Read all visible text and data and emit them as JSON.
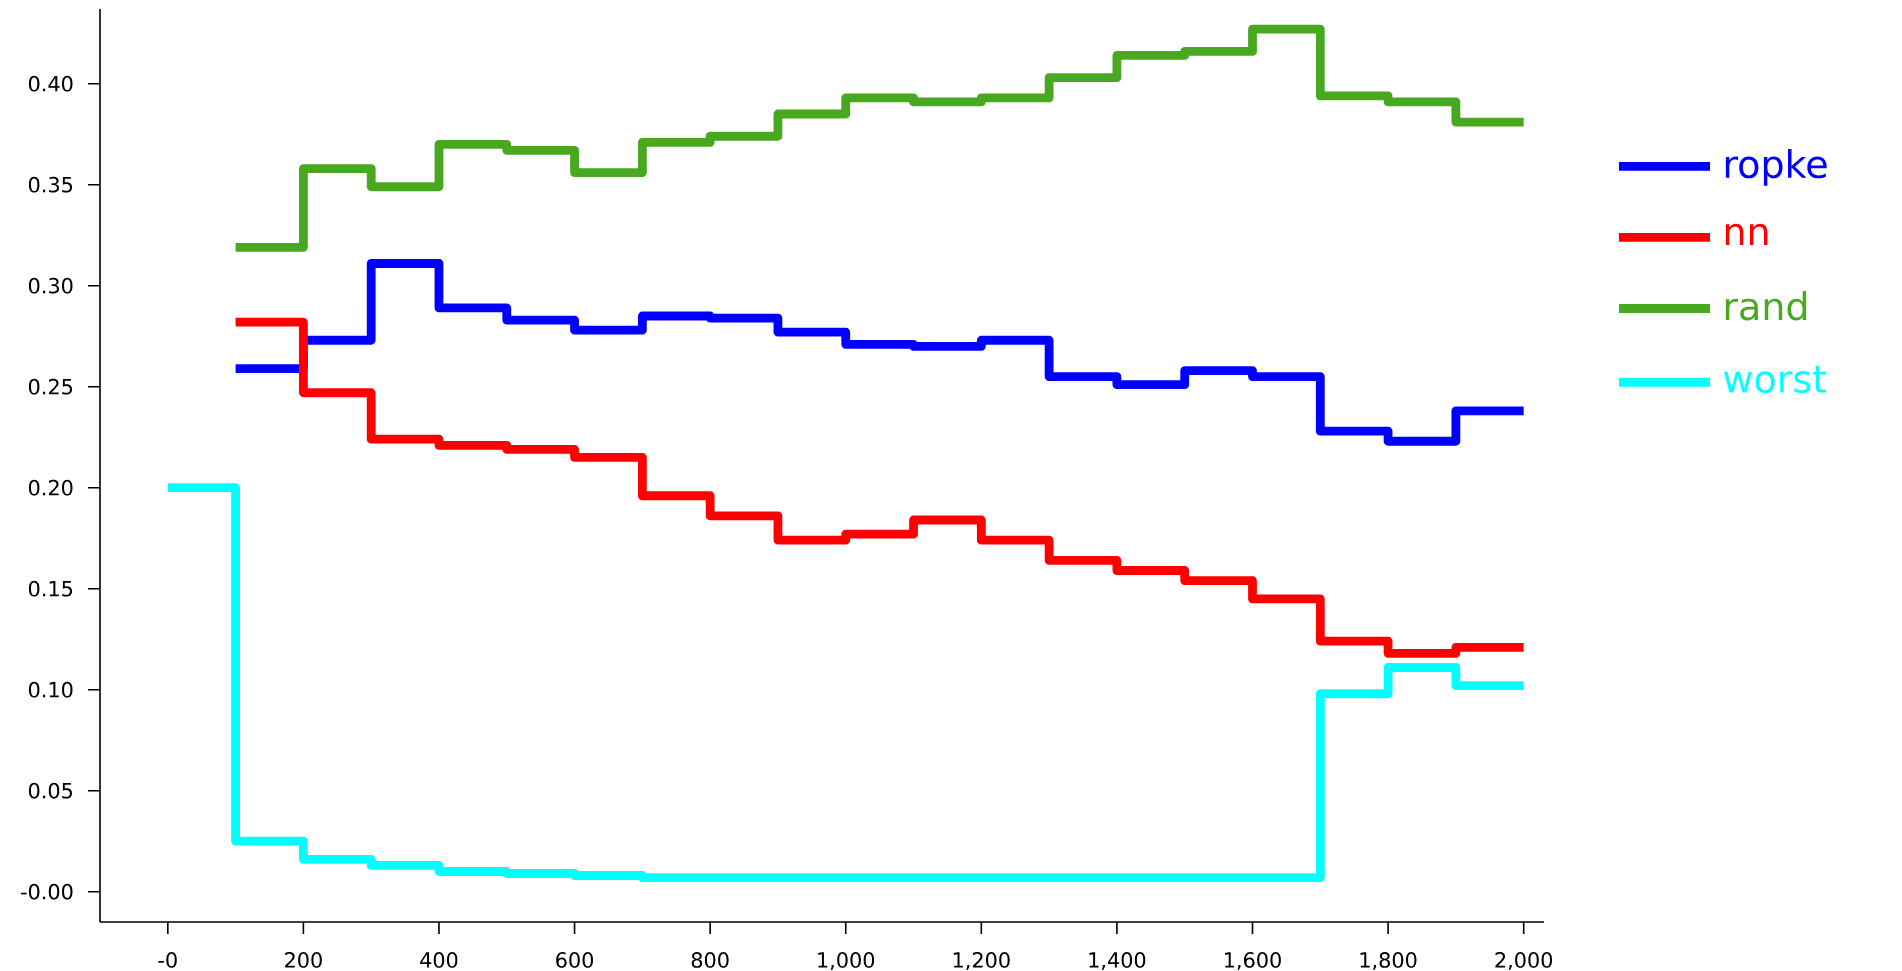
{
  "chart_data": {
    "type": "step",
    "x": [
      0,
      100,
      200,
      300,
      400,
      500,
      600,
      700,
      800,
      900,
      1000,
      1100,
      1200,
      1300,
      1400,
      1500,
      1600,
      1700,
      1800,
      1900,
      2000
    ],
    "series": [
      {
        "name": "ropke",
        "color": "#0000ff",
        "values": [
          null,
          0.259,
          0.273,
          0.311,
          0.289,
          0.283,
          0.278,
          0.285,
          0.284,
          0.277,
          0.271,
          0.27,
          0.273,
          0.255,
          0.251,
          0.258,
          0.255,
          0.228,
          0.223,
          0.238,
          0.238
        ]
      },
      {
        "name": "nn",
        "color": "#ff0000",
        "values": [
          null,
          0.282,
          0.247,
          0.224,
          0.221,
          0.219,
          0.215,
          0.196,
          0.186,
          0.174,
          0.177,
          0.184,
          0.174,
          0.164,
          0.159,
          0.154,
          0.145,
          0.124,
          0.118,
          0.121,
          0.121
        ]
      },
      {
        "name": "rand",
        "color": "#48a820",
        "values": [
          null,
          0.319,
          0.358,
          0.349,
          0.37,
          0.367,
          0.356,
          0.371,
          0.374,
          0.385,
          0.393,
          0.391,
          0.393,
          0.403,
          0.414,
          0.416,
          0.427,
          0.394,
          0.391,
          0.381,
          0.381
        ]
      },
      {
        "name": "worst",
        "color": "#00ffff",
        "values": [
          0.2,
          0.025,
          0.016,
          0.013,
          0.01,
          0.009,
          0.008,
          0.007,
          0.007,
          0.007,
          0.007,
          0.007,
          0.007,
          0.007,
          0.007,
          0.007,
          0.007,
          0.098,
          0.111,
          0.102,
          0.102
        ]
      }
    ],
    "xlim": [
      -100,
      2030
    ],
    "ylim": [
      -0.015,
      0.437
    ],
    "xticks": [
      {
        "value": 0,
        "label": "-0"
      },
      {
        "value": 200,
        "label": "200"
      },
      {
        "value": 400,
        "label": "400"
      },
      {
        "value": 600,
        "label": "600"
      },
      {
        "value": 800,
        "label": "800"
      },
      {
        "value": 1000,
        "label": "1,000"
      },
      {
        "value": 1200,
        "label": "1,200"
      },
      {
        "value": 1400,
        "label": "1,400"
      },
      {
        "value": 1600,
        "label": "1,600"
      },
      {
        "value": 1800,
        "label": "1,800"
      },
      {
        "value": 2000,
        "label": "2,000"
      }
    ],
    "yticks": [
      {
        "value": 0,
        "label": "-0.00"
      },
      {
        "value": 0.05,
        "label": "0.05"
      },
      {
        "value": 0.1,
        "label": "0.10"
      },
      {
        "value": 0.15,
        "label": "0.15"
      },
      {
        "value": 0.2,
        "label": "0.20"
      },
      {
        "value": 0.25,
        "label": "0.25"
      },
      {
        "value": 0.3,
        "label": "0.30"
      },
      {
        "value": 0.35,
        "label": "0.35"
      },
      {
        "value": 0.4,
        "label": "0.40"
      }
    ],
    "legend": "right",
    "line_style": "solid"
  }
}
